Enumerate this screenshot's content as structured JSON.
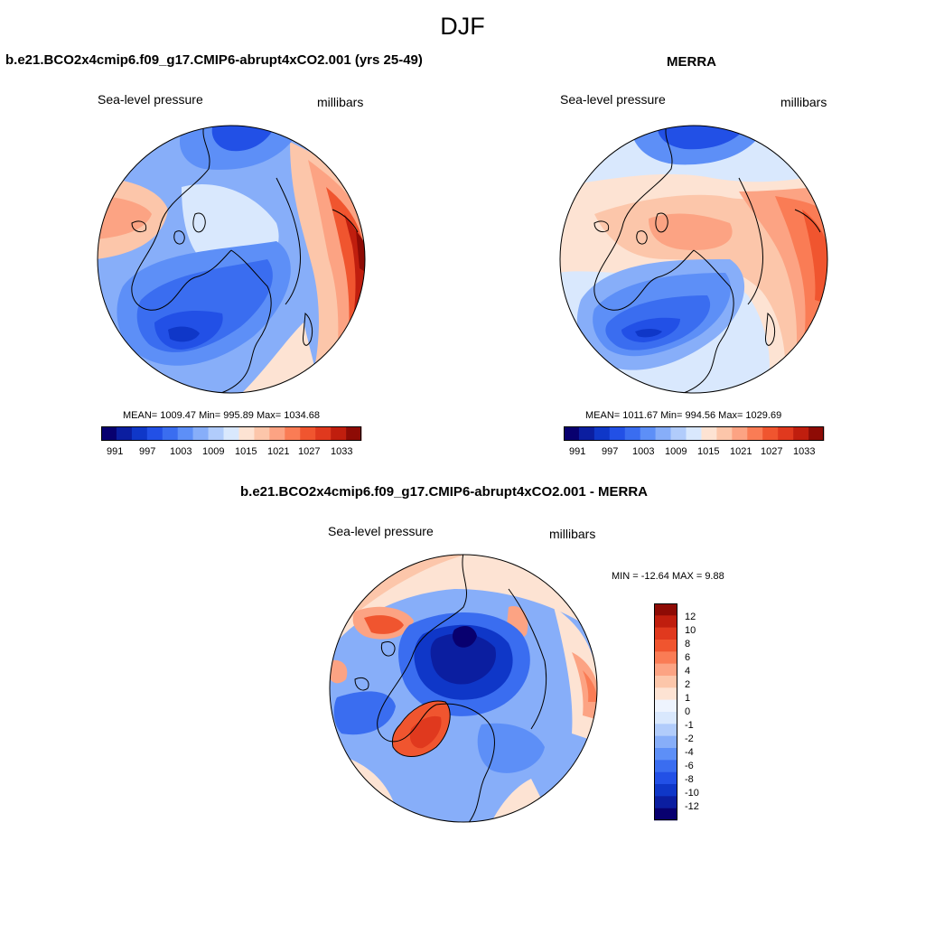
{
  "figure": {
    "season": "DJF"
  },
  "colors": {
    "blues": [
      "#08006f",
      "#0b1ea0",
      "#0f37c8",
      "#2250e6",
      "#3a6df0",
      "#5d8ff7",
      "#87aef9",
      "#b1ccfb",
      "#d9e8fd"
    ],
    "reds": [
      "#fde3d3",
      "#fcc6aa",
      "#fca383",
      "#fa7c55",
      "#f0552f",
      "#e0391e",
      "#c01e0e",
      "#8e0b05"
    ],
    "neutral": "#eef4fe",
    "coast": "#000000"
  },
  "panels": {
    "model": {
      "title": "b.e21.BCO2x4cmip6.f09_g17.CMIP6-abrupt4xCO2.001 (yrs 25-49)",
      "variable": "Sea-level pressure",
      "units": "millibars",
      "stats": "MEAN= 1009.47  Min= 995.89  Max= 1034.68",
      "colorbar_ticks": [
        "991",
        "997",
        "1003",
        "1009",
        "1015",
        "1021",
        "1027",
        "1033"
      ]
    },
    "obs": {
      "title": "MERRA",
      "variable": "Sea-level pressure",
      "units": "millibars",
      "stats": "MEAN= 1011.67  Min= 994.56  Max= 1029.69",
      "colorbar_ticks": [
        "991",
        "997",
        "1003",
        "1009",
        "1015",
        "1021",
        "1027",
        "1033"
      ]
    },
    "diff": {
      "title": "b.e21.BCO2x4cmip6.f09_g17.CMIP6-abrupt4xCO2.001 - MERRA",
      "variable": "Sea-level pressure",
      "units": "millibars",
      "stats": "MIN = -12.64 MAX =   9.88",
      "colorbar_ticks": [
        "12",
        "10",
        "8",
        "6",
        "4",
        "2",
        "1",
        "0",
        "-1",
        "-2",
        "-4",
        "-6",
        "-8",
        "-10",
        "-12"
      ]
    }
  }
}
